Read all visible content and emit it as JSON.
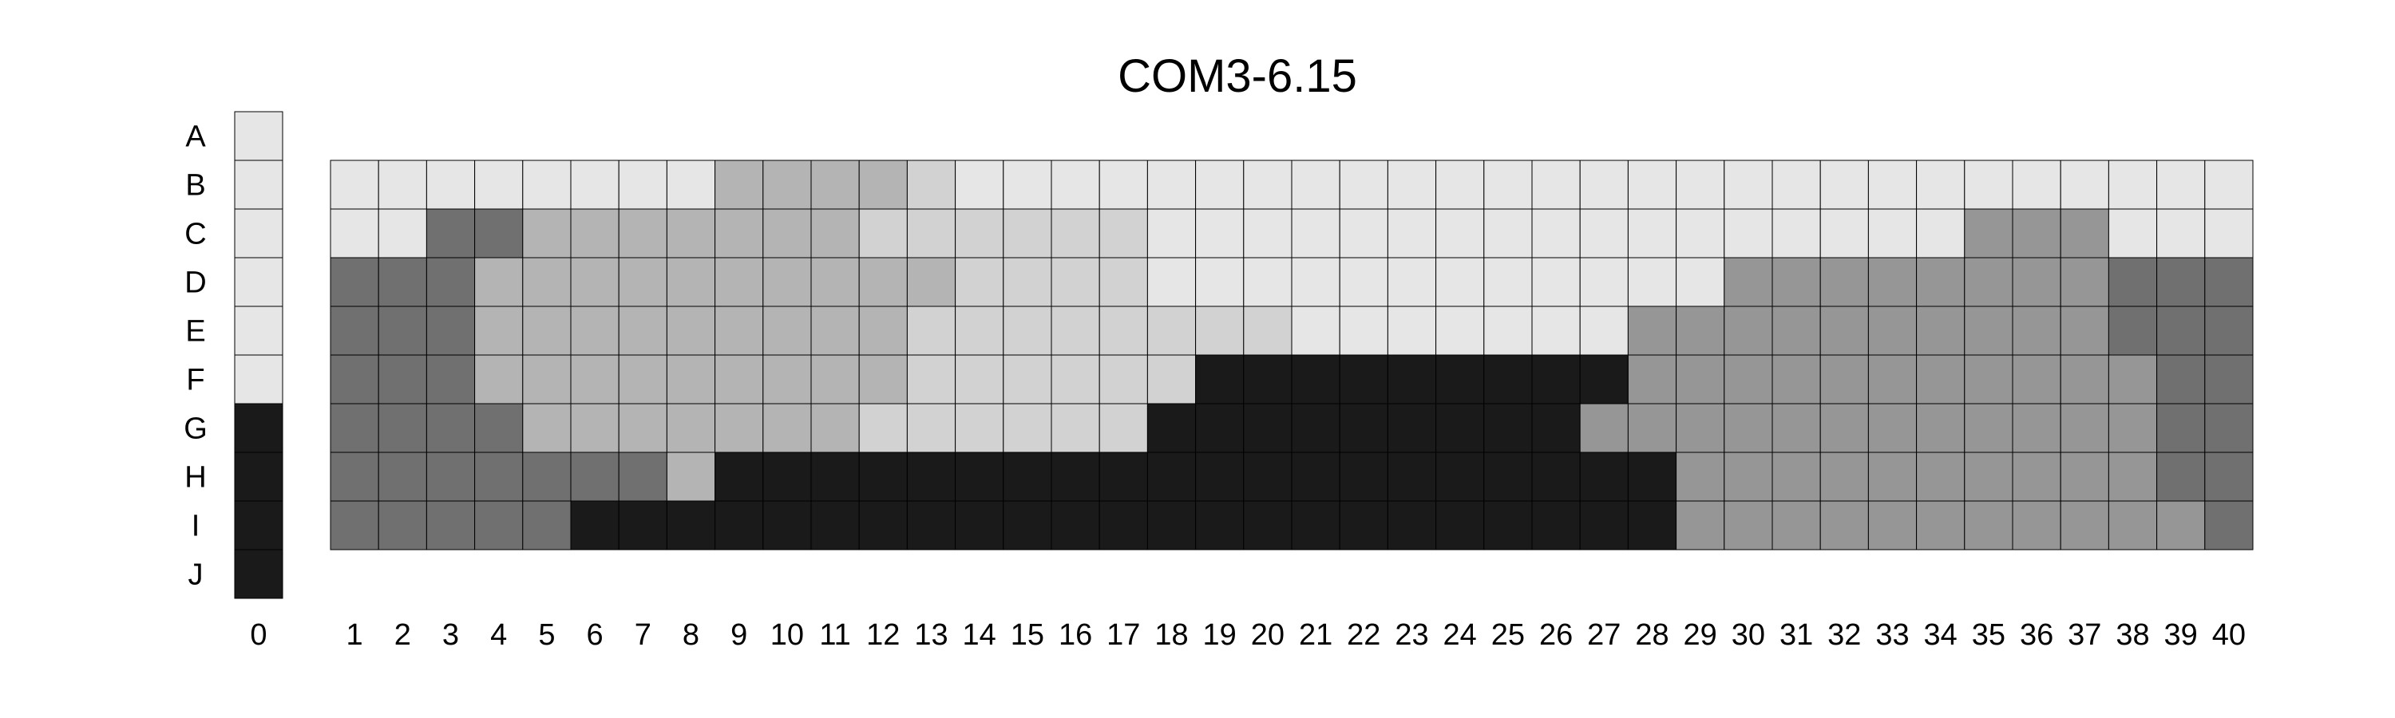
{
  "chart_data": {
    "type": "heatmap",
    "title": "COM3-6.15",
    "row_labels": [
      "A",
      "B",
      "C",
      "D",
      "E",
      "F",
      "G",
      "H",
      "I",
      "J"
    ],
    "reference_column": {
      "label": "0",
      "levels": [
        1,
        1,
        1,
        1,
        1,
        1,
        5,
        5,
        5,
        5
      ]
    },
    "columns": [
      "1",
      "2",
      "3",
      "4",
      "5",
      "6",
      "7",
      "8",
      "9",
      "10",
      "11",
      "12",
      "13",
      "14",
      "15",
      "16",
      "17",
      "18",
      "19",
      "20",
      "21",
      "22",
      "23",
      "24",
      "25",
      "26",
      "27",
      "28",
      "29",
      "30",
      "31",
      "32",
      "33",
      "34",
      "35",
      "36",
      "37",
      "38",
      "39",
      "40"
    ],
    "grid_rows": [
      "B",
      "C",
      "D",
      "E",
      "F",
      "G",
      "H",
      "I"
    ],
    "level_colors": {
      "1": "#e6e6e6",
      "2": "#d2d2d2",
      "3": "#b4b4b4",
      "4": "#969696",
      "5": "#1a1a1a",
      "6": "#707070"
    },
    "grid_levels": [
      [
        1,
        1,
        1,
        1,
        1,
        1,
        1,
        1,
        3,
        3,
        3,
        3,
        2,
        1,
        1,
        1,
        1,
        1,
        1,
        1,
        1,
        1,
        1,
        1,
        1,
        1,
        1,
        1,
        1,
        1,
        1,
        1,
        1,
        1,
        1,
        1,
        1,
        1,
        1,
        1
      ],
      [
        1,
        1,
        6,
        6,
        3,
        3,
        3,
        3,
        3,
        3,
        3,
        2,
        2,
        2,
        2,
        2,
        2,
        1,
        1,
        1,
        1,
        1,
        1,
        1,
        1,
        1,
        1,
        1,
        1,
        1,
        1,
        1,
        1,
        1,
        4,
        4,
        4,
        1,
        1,
        1
      ],
      [
        6,
        6,
        6,
        3,
        3,
        3,
        3,
        3,
        3,
        3,
        3,
        3,
        3,
        2,
        2,
        2,
        2,
        1,
        1,
        1,
        1,
        1,
        1,
        1,
        1,
        1,
        1,
        1,
        1,
        4,
        4,
        4,
        4,
        4,
        4,
        4,
        4,
        6,
        6,
        6
      ],
      [
        6,
        6,
        6,
        3,
        3,
        3,
        3,
        3,
        3,
        3,
        3,
        3,
        2,
        2,
        2,
        2,
        2,
        2,
        2,
        2,
        1,
        1,
        1,
        1,
        1,
        1,
        1,
        4,
        4,
        4,
        4,
        4,
        4,
        4,
        4,
        4,
        4,
        6,
        6,
        6
      ],
      [
        6,
        6,
        6,
        3,
        3,
        3,
        3,
        3,
        3,
        3,
        3,
        3,
        2,
        2,
        2,
        2,
        2,
        2,
        5,
        5,
        5,
        5,
        5,
        5,
        5,
        5,
        5,
        4,
        4,
        4,
        4,
        4,
        4,
        4,
        4,
        4,
        4,
        4,
        6,
        6
      ],
      [
        6,
        6,
        6,
        6,
        3,
        3,
        3,
        3,
        3,
        3,
        3,
        2,
        2,
        2,
        2,
        2,
        2,
        5,
        5,
        5,
        5,
        5,
        5,
        5,
        5,
        5,
        4,
        4,
        4,
        4,
        4,
        4,
        4,
        4,
        4,
        4,
        4,
        4,
        6,
        6
      ],
      [
        6,
        6,
        6,
        6,
        6,
        6,
        6,
        3,
        5,
        5,
        5,
        5,
        5,
        5,
        5,
        5,
        5,
        5,
        5,
        5,
        5,
        5,
        5,
        5,
        5,
        5,
        5,
        5,
        4,
        4,
        4,
        4,
        4,
        4,
        4,
        4,
        4,
        4,
        6,
        6
      ],
      [
        6,
        6,
        6,
        6,
        6,
        5,
        5,
        5,
        5,
        5,
        5,
        5,
        5,
        5,
        5,
        5,
        5,
        5,
        5,
        5,
        5,
        5,
        5,
        5,
        5,
        5,
        5,
        5,
        4,
        4,
        4,
        4,
        4,
        4,
        4,
        4,
        4,
        4,
        4,
        6
      ]
    ]
  }
}
